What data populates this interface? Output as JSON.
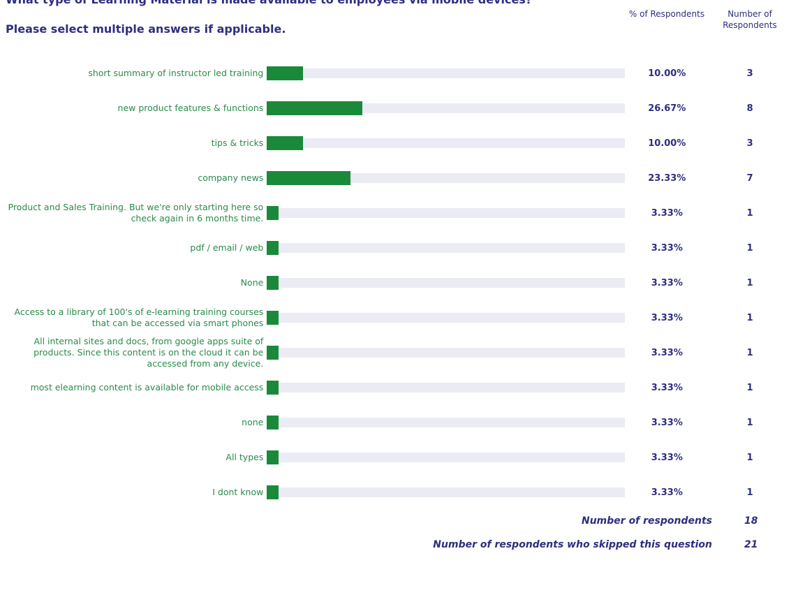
{
  "chart_data": {
    "type": "bar",
    "orientation": "horizontal",
    "title": "What type of Learning Material is made available to employees via mobile devices?",
    "subtitle": "Please select multiple answers if applicable.",
    "value_column_header": "% of Respondents",
    "count_column_header": "Number of Respondents",
    "categories": [
      "short summary of instructor led training",
      "new product features & functions",
      "tips & tricks",
      "company news",
      "Product and Sales Training. But we're only starting here so check again in 6 months time.",
      "pdf / email / web",
      "None",
      "Access to a library of 100's of e-learning training courses that can be accessed via smart phones",
      "All internal sites and docs, from google apps suite of products. Since this content is on the cloud it can be accessed from any device.",
      "most elearning content is available for mobile access",
      "none",
      "All types",
      "I dont know"
    ],
    "values": [
      10.0,
      26.67,
      10.0,
      23.33,
      3.33,
      3.33,
      3.33,
      3.33,
      3.33,
      3.33,
      3.33,
      3.33,
      3.33
    ],
    "value_labels": [
      "10.00%",
      "26.67%",
      "10.00%",
      "23.33%",
      "3.33%",
      "3.33%",
      "3.33%",
      "3.33%",
      "3.33%",
      "3.33%",
      "3.33%",
      "3.33%",
      "3.33%"
    ],
    "counts": [
      3,
      8,
      3,
      7,
      1,
      1,
      1,
      1,
      1,
      1,
      1,
      1,
      1
    ],
    "xlim": [
      0,
      100
    ],
    "color": "#1a8a3a",
    "summary": [
      {
        "label": "Number of respondents",
        "value": 18
      },
      {
        "label": "Number of respondents who skipped this question",
        "value": 21
      }
    ]
  }
}
